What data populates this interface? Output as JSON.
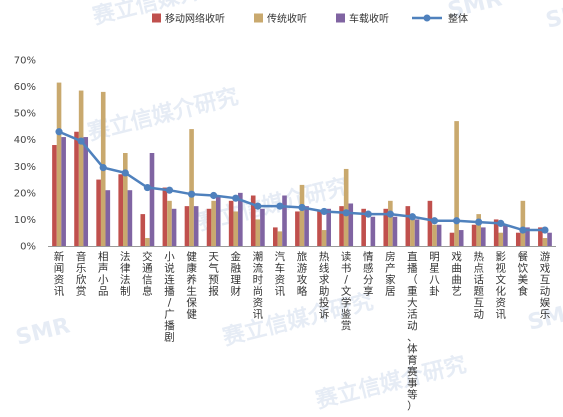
{
  "watermark": {
    "text": "赛立信媒介研究",
    "logo": "SMR"
  },
  "chart_data": {
    "type": "bar",
    "title": "",
    "xlabel": "",
    "ylabel": "",
    "ylim": [
      0,
      70
    ],
    "yticks": [
      "0%",
      "10%",
      "20%",
      "30%",
      "40%",
      "50%",
      "60%",
      "70%"
    ],
    "categories": [
      "新闻资讯",
      "音乐欣赏",
      "相声小品",
      "法律法制",
      "交通信息",
      "小说连播/广播剧",
      "健康养生保健",
      "天气预报",
      "金融理财",
      "潮流时尚资讯",
      "汽车资讯",
      "旅游攻略",
      "热线求助投诉",
      "读书/文学鉴赏",
      "情感分享",
      "房产家居",
      "直播（重大活动、体育赛事等）",
      "明星八卦",
      "戏曲曲艺",
      "热点话题互动",
      "影视文化资讯",
      "餐饮美食",
      "游戏互动娱乐"
    ],
    "series": [
      {
        "name": "移动网络收听",
        "type": "bar",
        "color": "#c0504d",
        "values": [
          38,
          43,
          25,
          27,
          12,
          22,
          15,
          14,
          17,
          19,
          7,
          13,
          13,
          15,
          14,
          14,
          15,
          17,
          5,
          8,
          10,
          5,
          7
        ]
      },
      {
        "name": "传统收听",
        "type": "bar",
        "color": "#c9a96e",
        "values": [
          61.5,
          58.5,
          58,
          35,
          3,
          17,
          44,
          17,
          13,
          10,
          5.5,
          23,
          6,
          29,
          0,
          17,
          10,
          8,
          47,
          12,
          5,
          17,
          3
        ]
      },
      {
        "name": "车载收听",
        "type": "bar",
        "color": "#8064a2",
        "values": [
          41,
          41,
          21,
          21,
          35,
          14,
          15,
          19,
          20,
          14,
          19,
          15,
          14,
          16,
          11,
          11,
          10,
          8,
          6,
          7,
          8,
          7,
          5
        ]
      },
      {
        "name": "整体",
        "type": "line",
        "color": "#4f81bd",
        "values": [
          43,
          39.5,
          29.5,
          27.5,
          22,
          21,
          19.5,
          19,
          18,
          15,
          15,
          14.5,
          13,
          12.5,
          12,
          12,
          11,
          9.5,
          9.5,
          9,
          8.5,
          6,
          6
        ]
      }
    ],
    "legend_position": "top",
    "grid": false
  }
}
